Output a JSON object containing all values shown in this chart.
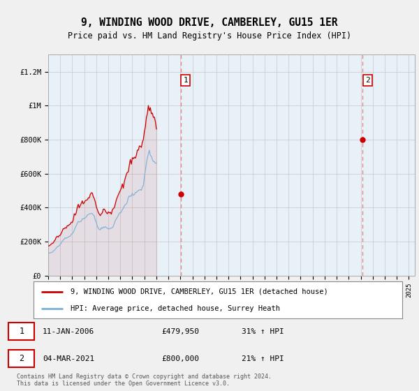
{
  "title": "9, WINDING WOOD DRIVE, CAMBERLEY, GU15 1ER",
  "subtitle": "Price paid vs. HM Land Registry's House Price Index (HPI)",
  "ylabel_ticks": [
    "£0",
    "£200K",
    "£400K",
    "£600K",
    "£800K",
    "£1M",
    "£1.2M"
  ],
  "ytick_values": [
    0,
    200000,
    400000,
    600000,
    800000,
    1000000,
    1200000
  ],
  "ylim": [
    0,
    1300000
  ],
  "xlim_start": 1995.0,
  "xlim_end": 2025.5,
  "xticks": [
    1995,
    1996,
    1997,
    1998,
    1999,
    2000,
    2001,
    2002,
    2003,
    2004,
    2005,
    2006,
    2007,
    2008,
    2009,
    2010,
    2011,
    2012,
    2013,
    2014,
    2015,
    2016,
    2017,
    2018,
    2019,
    2020,
    2021,
    2022,
    2023,
    2024,
    2025
  ],
  "transaction1_x": 2006.03,
  "transaction1_y": 479950,
  "transaction1_label": "1",
  "transaction1_date": "11-JAN-2006",
  "transaction1_price": "£479,950",
  "transaction1_hpi": "31% ↑ HPI",
  "transaction2_x": 2021.17,
  "transaction2_y": 800000,
  "transaction2_label": "2",
  "transaction2_date": "04-MAR-2021",
  "transaction2_price": "£800,000",
  "transaction2_hpi": "21% ↑ HPI",
  "line1_color": "#cc0000",
  "line2_color": "#7ab0d4",
  "vline_color": "#ee8888",
  "background_color": "#f0f0f0",
  "plot_bg_color": "#e8f0f8",
  "legend1_label": "9, WINDING WOOD DRIVE, CAMBERLEY, GU15 1ER (detached house)",
  "legend2_label": "HPI: Average price, detached house, Surrey Heath",
  "footer": "Contains HM Land Registry data © Crown copyright and database right 2024.\nThis data is licensed under the Open Government Licence v3.0.",
  "noise_seed": 42,
  "hpi_base": [
    130000,
    132000,
    134000,
    137000,
    140000,
    144000,
    149000,
    155000,
    161000,
    167000,
    173000,
    178000,
    184000,
    191000,
    199000,
    207000,
    214000,
    219000,
    223000,
    226000,
    229000,
    232000,
    236000,
    241000,
    248000,
    258000,
    270000,
    281000,
    291000,
    300000,
    308000,
    315000,
    322000,
    328000,
    333000,
    337000,
    340000,
    342000,
    346000,
    352000,
    358000,
    364000,
    370000,
    372000,
    368000,
    358000,
    344000,
    327000,
    310000,
    295000,
    283000,
    275000,
    272000,
    275000,
    280000,
    284000,
    286000,
    285000,
    282000,
    279000,
    277000,
    277000,
    278000,
    281000,
    286000,
    294000,
    306000,
    319000,
    332000,
    344000,
    354000,
    362000,
    369000,
    376000,
    384000,
    393000,
    404000,
    416000,
    428000,
    440000,
    451000,
    460000,
    467000,
    472000,
    476000,
    479000,
    482000,
    486000,
    491000,
    497000,
    501000,
    502000,
    498000,
    502000,
    518000,
    543000,
    578000,
    625000,
    668000,
    700000,
    720000,
    730000,
    718000,
    703000,
    688000,
    674000,
    663000,
    657000,
    652000
  ],
  "price_base": [
    175000,
    178000,
    181000,
    185000,
    190000,
    196000,
    203000,
    210000,
    217000,
    224000,
    231000,
    237000,
    244000,
    252000,
    261000,
    271000,
    280000,
    286000,
    291000,
    295000,
    299000,
    303000,
    308000,
    315000,
    323000,
    336000,
    351000,
    365000,
    378000,
    389000,
    399000,
    408000,
    416000,
    422000,
    427000,
    430000,
    432000,
    435000,
    441000,
    449000,
    459000,
    469000,
    479950,
    490000,
    485000,
    470000,
    450000,
    427000,
    405000,
    387000,
    373000,
    362000,
    358000,
    362000,
    370000,
    377000,
    381000,
    380000,
    376000,
    372000,
    368000,
    368000,
    370000,
    374000,
    381000,
    392000,
    408000,
    426000,
    444000,
    462000,
    478000,
    491000,
    503000,
    514000,
    526000,
    540000,
    556000,
    574000,
    593000,
    612000,
    631000,
    648000,
    663000,
    675000,
    684000,
    692000,
    698000,
    705000,
    713000,
    722000,
    731000,
    740000,
    746000,
    749000,
    762000,
    795000,
    835000,
    880000,
    929000,
    966000,
    984000,
    992000,
    975000,
    956000,
    937000,
    919000,
    904000,
    895000,
    888000
  ]
}
